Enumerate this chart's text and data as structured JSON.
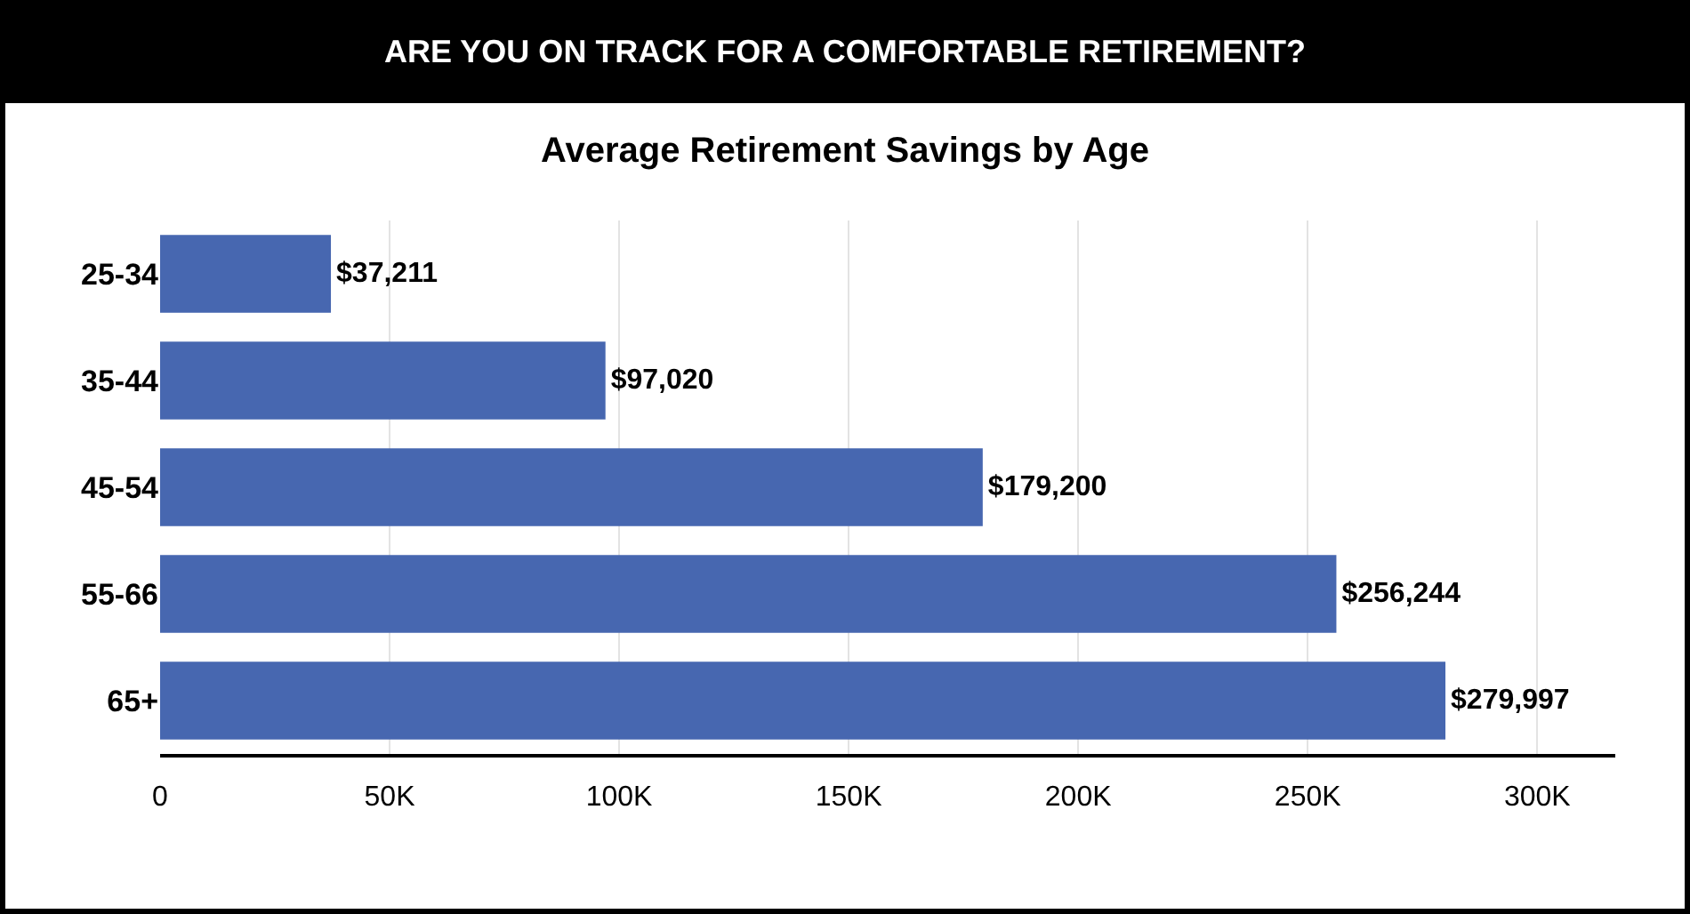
{
  "chart_data": {
    "type": "bar",
    "orientation": "horizontal",
    "title": "ARE YOU ON TRACK FOR A COMFORTABLE RETIREMENT?",
    "subtitle": "Average Retirement Savings by Age",
    "categories": [
      "25-34",
      "35-44",
      "45-54",
      "55-66",
      "65+"
    ],
    "values": [
      37211,
      97020,
      179200,
      256244,
      279997
    ],
    "value_labels": [
      "$37,211",
      "$97,020",
      "$179,200",
      "$256,244",
      "$279,997"
    ],
    "color": "#4767b0",
    "xlim": [
      0,
      317000
    ],
    "xticks": [
      0,
      {
        "value": 50000,
        "label": "50K"
      },
      {
        "value": 100000,
        "label": "100K"
      },
      {
        "value": 150000,
        "label": "150K"
      },
      {
        "value": 200000,
        "label": "200K"
      },
      {
        "value": 250000,
        "label": "250K"
      },
      {
        "value": 300000,
        "label": "300K"
      }
    ],
    "grid": "x"
  }
}
